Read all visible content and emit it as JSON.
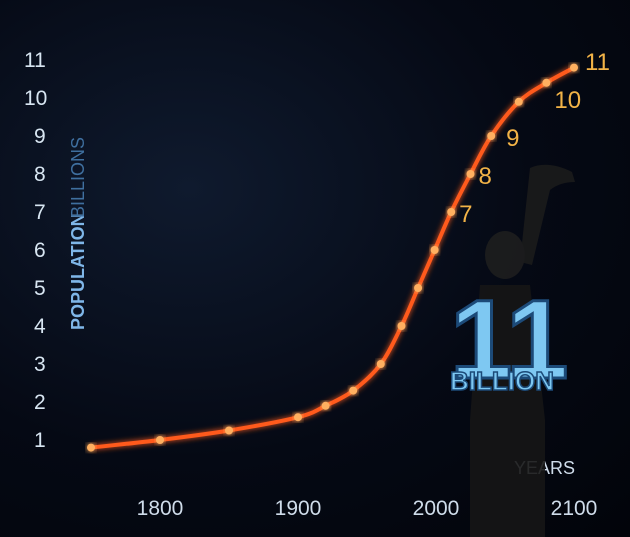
{
  "chart_data": {
    "type": "line",
    "ylabel_main": "POPULATION",
    "ylabel_unit": "BILLIONS",
    "xlabel": "YEARS",
    "y_ticks": [
      "1",
      "2",
      "3",
      "4",
      "5",
      "6",
      "7",
      "8",
      "9",
      "10",
      "11"
    ],
    "x_ticks": [
      "1800",
      "1900",
      "2000",
      "2100"
    ],
    "xlim": [
      1740,
      2110
    ],
    "ylim": [
      0,
      11
    ],
    "series": [
      {
        "x": [
          1750,
          1800,
          1850,
          1900,
          1920,
          1940,
          1960,
          1975,
          1987,
          1999,
          2011,
          2025,
          2040,
          2060,
          2080,
          2100
        ],
        "values": [
          0.8,
          1.0,
          1.25,
          1.6,
          1.9,
          2.3,
          3.0,
          4.0,
          5.0,
          6.0,
          7.0,
          8.0,
          9.0,
          9.9,
          10.4,
          10.8
        ]
      }
    ],
    "data_labels": [
      {
        "x": 2011,
        "y": 7,
        "text": "7"
      },
      {
        "x": 2025,
        "y": 8,
        "text": "8"
      },
      {
        "x": 2045,
        "y": 9,
        "text": "9"
      },
      {
        "x": 2080,
        "y": 10,
        "text": "10"
      },
      {
        "x": 2115,
        "y": 11,
        "text": "11"
      }
    ],
    "colors": {
      "curve": "#ff5a1f",
      "axis": "#4a9ad8",
      "labels": "#f2b347"
    }
  },
  "overlay": {
    "big_number": "11",
    "big_caption": "BILLION"
  }
}
